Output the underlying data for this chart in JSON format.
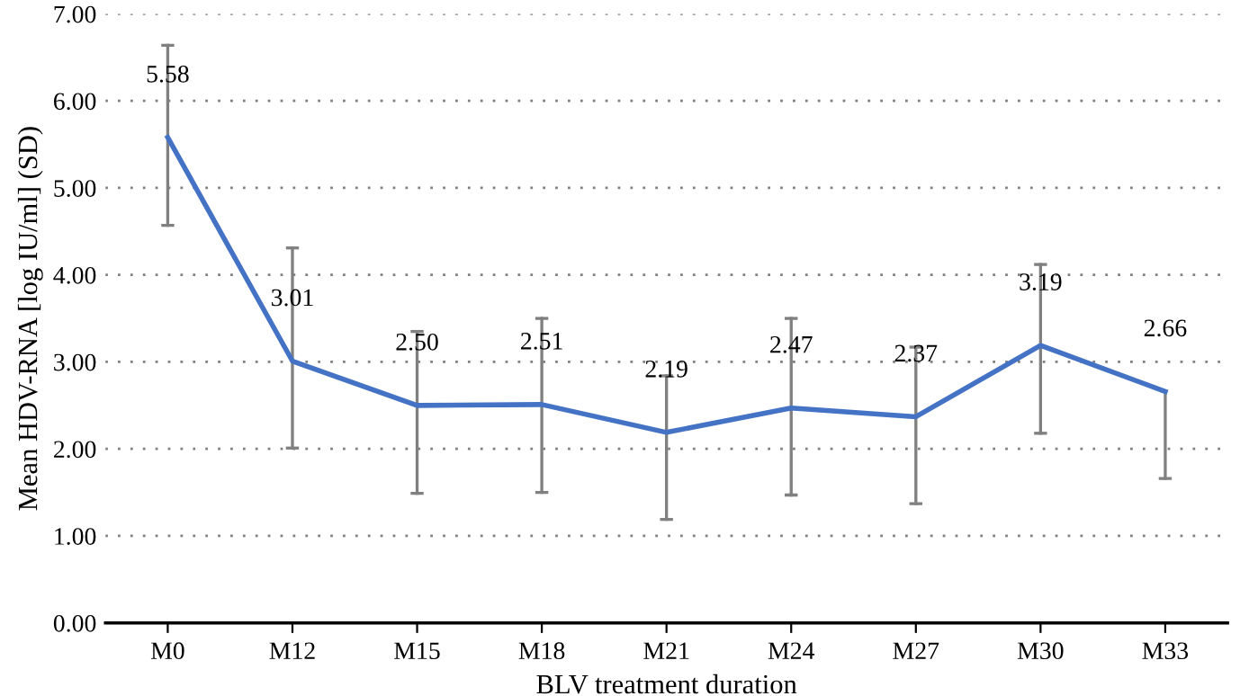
{
  "chart_data": {
    "type": "line",
    "xlabel": "BLV treatment duration",
    "ylabel": "Mean HDV-RNA [log IU/ml] (SD)",
    "categories": [
      "M0",
      "M12",
      "M15",
      "M18",
      "M21",
      "M24",
      "M27",
      "M30",
      "M33"
    ],
    "series": [
      {
        "color": "#4472c4",
        "values": [
          5.58,
          3.01,
          2.5,
          2.51,
          2.19,
          2.47,
          2.37,
          3.19,
          2.66
        ],
        "errors": [
          [
            4.57,
            6.64
          ],
          [
            2.01,
            4.31
          ],
          [
            1.49,
            3.35
          ],
          [
            1.5,
            3.5
          ],
          [
            1.19,
            2.84
          ],
          [
            1.47,
            3.5
          ],
          [
            1.37,
            3.17
          ],
          [
            2.18,
            4.12
          ],
          [
            1.66,
            2.66
          ]
        ]
      }
    ],
    "value_labels": [
      "5.58",
      "3.01",
      "2.50",
      "2.51",
      "2.19",
      "2.47",
      "2.37",
      "3.19",
      "2.66"
    ],
    "ylim": [
      0,
      7
    ],
    "yticks": [
      {
        "value": 0,
        "label": "0.00"
      },
      {
        "value": 1,
        "label": "1.00"
      },
      {
        "value": 2,
        "label": "2.00"
      },
      {
        "value": 3,
        "label": "3.00"
      },
      {
        "value": 4,
        "label": "4.00"
      },
      {
        "value": 5,
        "label": "5.00"
      },
      {
        "value": 6,
        "label": "6.00"
      },
      {
        "value": 7,
        "label": "7.00"
      }
    ],
    "grid": "y",
    "marker": "none",
    "line_style": "solid"
  }
}
